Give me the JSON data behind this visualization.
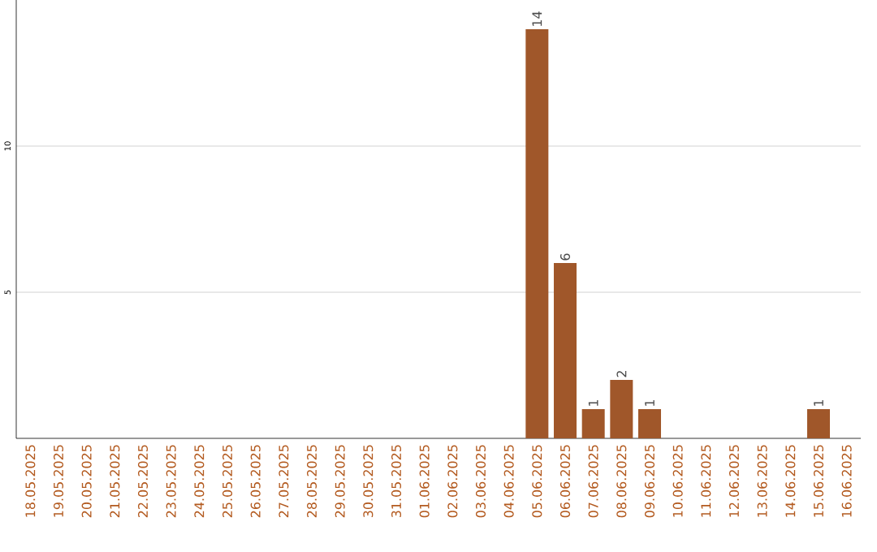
{
  "chart_data": {
    "type": "bar",
    "categories": [
      "18.05.2025",
      "19.05.2025",
      "20.05.2025",
      "21.05.2025",
      "22.05.2025",
      "23.05.2025",
      "24.05.2025",
      "25.05.2025",
      "26.05.2025",
      "27.05.2025",
      "28.05.2025",
      "29.05.2025",
      "30.05.2025",
      "31.05.2025",
      "01.06.2025",
      "02.06.2025",
      "03.06.2025",
      "04.06.2025",
      "05.06.2025",
      "06.06.2025",
      "07.06.2025",
      "08.06.2025",
      "09.06.2025",
      "10.06.2025",
      "11.06.2025",
      "12.06.2025",
      "13.06.2025",
      "14.06.2025",
      "15.06.2025",
      "16.06.2025"
    ],
    "values": [
      0,
      0,
      0,
      0,
      0,
      0,
      0,
      0,
      0,
      0,
      0,
      0,
      0,
      0,
      0,
      0,
      0,
      0,
      14,
      6,
      1,
      2,
      1,
      0,
      0,
      0,
      0,
      0,
      1,
      0
    ],
    "value_labels": [
      null,
      null,
      null,
      null,
      null,
      null,
      null,
      null,
      null,
      null,
      null,
      null,
      null,
      null,
      null,
      null,
      null,
      null,
      "14",
      "6",
      "1",
      "2",
      "1",
      null,
      null,
      null,
      null,
      null,
      "1",
      null
    ],
    "color": "#a0572a",
    "ylim": [
      0,
      15
    ],
    "yticks": [
      5,
      10
    ],
    "grid": "y"
  }
}
